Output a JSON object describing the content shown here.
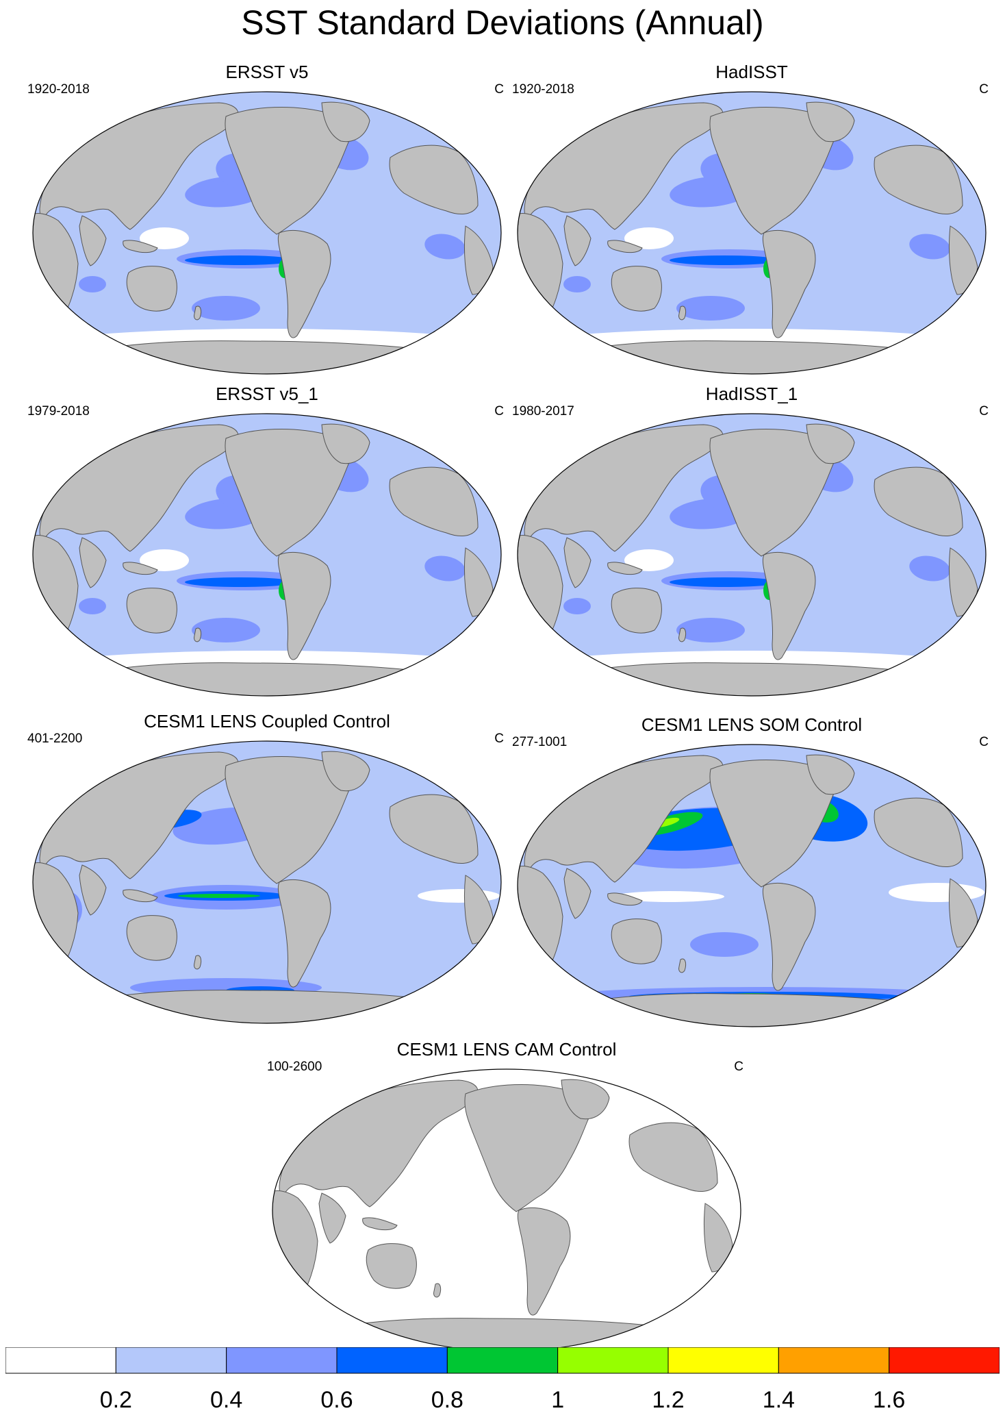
{
  "title": "SST Standard Deviations (Annual)",
  "panels": [
    {
      "title": "ERSST v5",
      "period": "1920-2018",
      "units": "C",
      "style": "obs"
    },
    {
      "title": "HadISST",
      "period": "1920-2018",
      "units": "C",
      "style": "obs"
    },
    {
      "title": "ERSST v5_1",
      "period": "1979-2018",
      "units": "C",
      "style": "obs"
    },
    {
      "title": "HadISST_1",
      "period": "1980-2017",
      "units": "C",
      "style": "obs"
    },
    {
      "title": "CESM1 LENS Coupled Control",
      "period": "401-2200",
      "units": "C",
      "style": "coupled"
    },
    {
      "title": "CESM1 LENS SOM Control",
      "period": "277-1001",
      "units": "C",
      "style": "som"
    },
    {
      "title": "CESM1 LENS CAM Control",
      "period": "100-2600",
      "units": "C",
      "style": "cam"
    }
  ],
  "colorbar": {
    "levels": [
      "0.2",
      "0.4",
      "0.6",
      "0.8",
      "1",
      "1.2",
      "1.4",
      "1.6"
    ],
    "colors": [
      "#ffffff",
      "#b4c8fa",
      "#7f96ff",
      "#0063ff",
      "#00c633",
      "#96ff00",
      "#ffff00",
      "#ffa000",
      "#ff1900"
    ]
  },
  "colors": {
    "land": "#bfbfbf",
    "land_edge": "#555555"
  }
}
